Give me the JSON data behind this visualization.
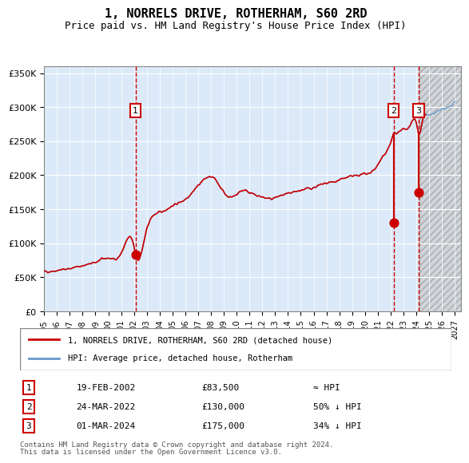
{
  "title": "1, NORRELS DRIVE, ROTHERHAM, S60 2RD",
  "subtitle": "Price paid vs. HM Land Registry's House Price Index (HPI)",
  "legend_line1": "1, NORRELS DRIVE, ROTHERHAM, S60 2RD (detached house)",
  "legend_line2": "HPI: Average price, detached house, Rotherham",
  "footnote1": "Contains HM Land Registry data © Crown copyright and database right 2024.",
  "footnote2": "This data is licensed under the Open Government Licence v3.0.",
  "transactions": [
    {
      "num": 1,
      "date": "19-FEB-2002",
      "price": 83500,
      "hpi_rel": "≈ HPI",
      "year": 2002.12
    },
    {
      "num": 2,
      "date": "24-MAR-2022",
      "price": 130000,
      "hpi_rel": "50% ↓ HPI",
      "year": 2022.23
    },
    {
      "num": 3,
      "date": "01-MAR-2024",
      "price": 175000,
      "hpi_rel": "34% ↓ HPI",
      "year": 2024.17
    }
  ],
  "plot_bg": "#dce9f8",
  "hatch_bg": "#d0d0d0",
  "line_color_red": "#cc0000",
  "line_color_blue": "#6699cc",
  "dot_color": "#cc0000",
  "dashed_color": "#cc0000",
  "grid_color": "#ffffff",
  "ylim": [
    0,
    360000
  ],
  "xlim_start": 1995.0,
  "xlim_end": 2027.5,
  "future_start": 2024.25
}
